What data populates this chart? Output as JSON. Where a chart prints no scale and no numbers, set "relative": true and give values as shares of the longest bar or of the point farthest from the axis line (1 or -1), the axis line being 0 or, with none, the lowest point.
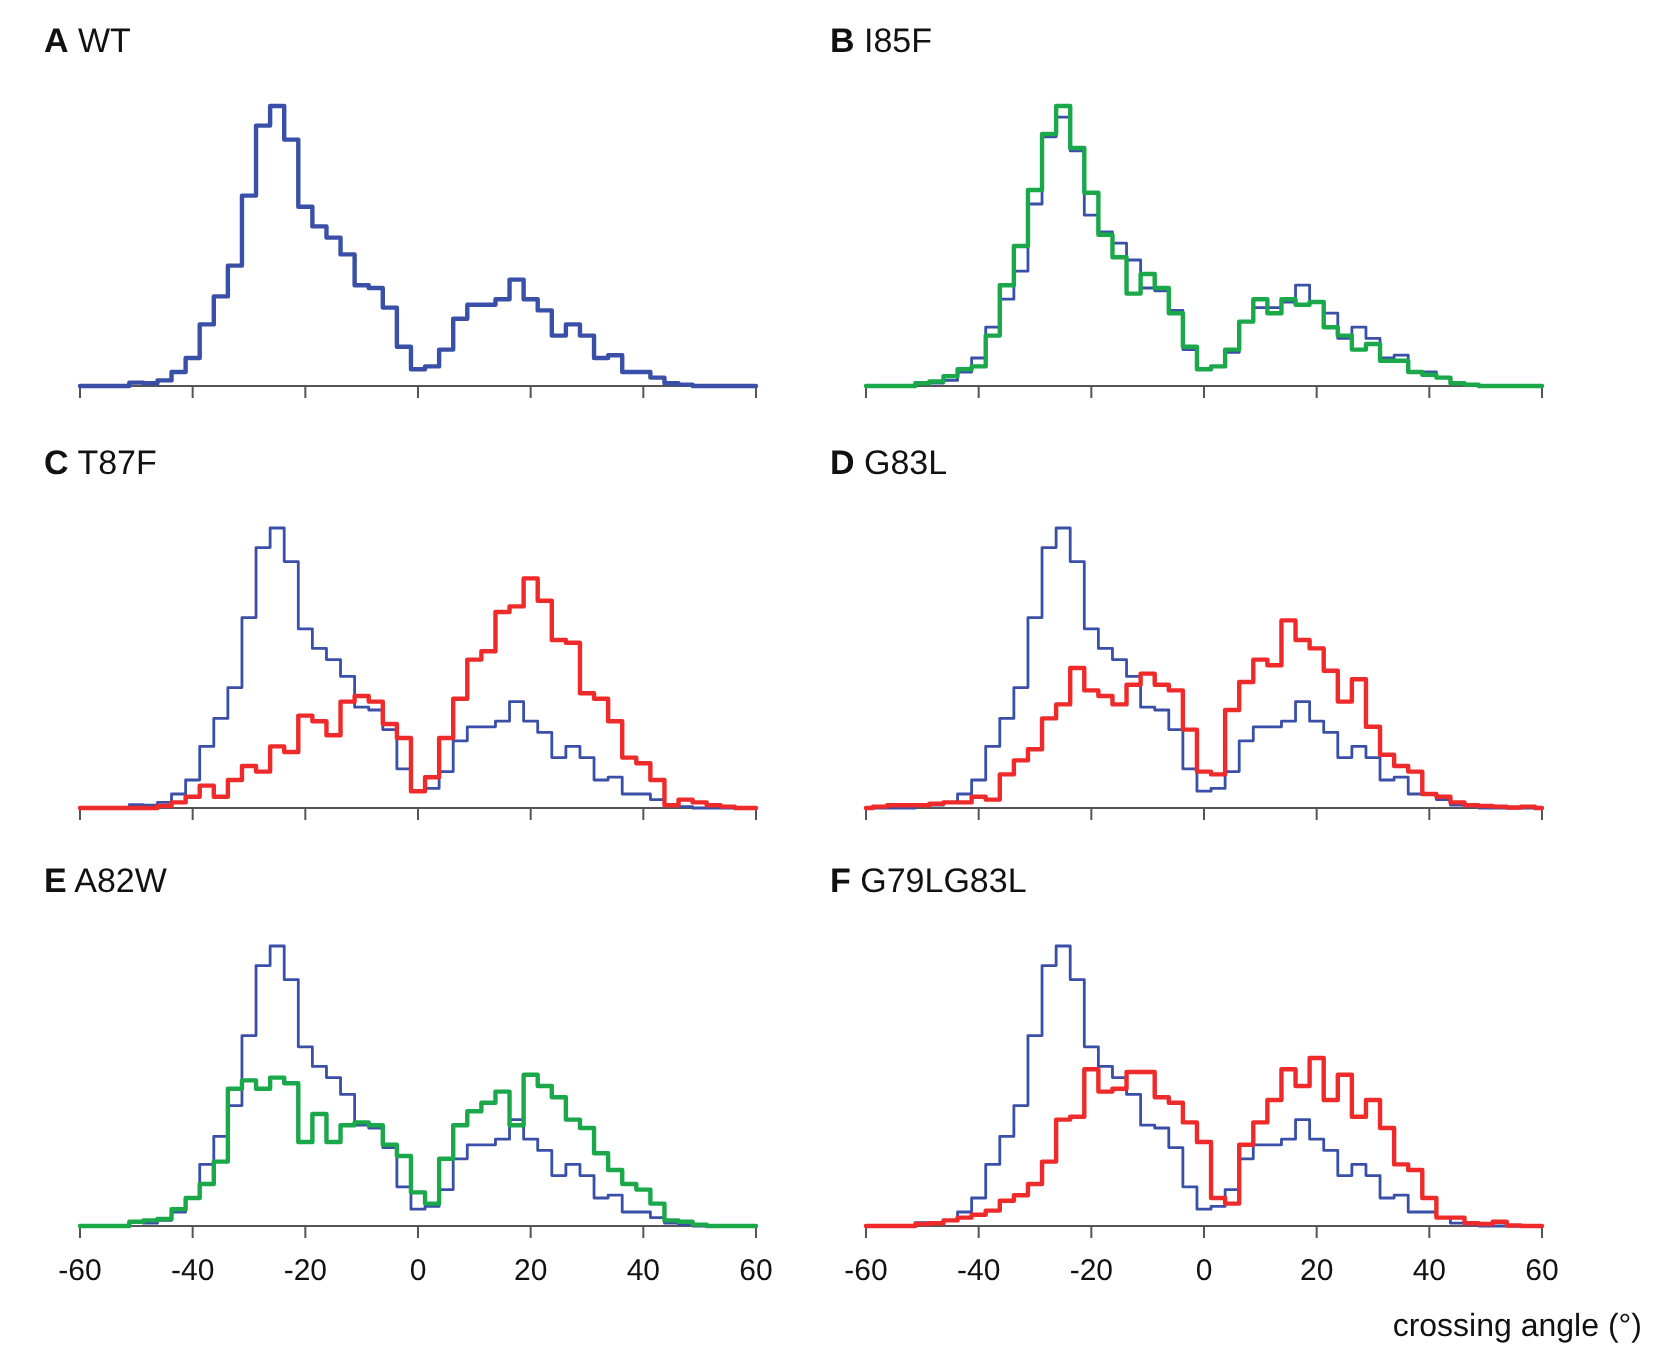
{
  "chart_data": [
    {
      "type": "step",
      "title": "A WT",
      "relative": true,
      "xlim": [
        -60,
        60
      ],
      "xticks": [
        -60,
        -40,
        -20,
        0,
        20,
        40,
        60
      ],
      "tick_labels": false,
      "x": [
        -60,
        -57.5,
        -55,
        -52.5,
        -50,
        -47.5,
        -45,
        -42.5,
        -40,
        -37.5,
        -35,
        -32.5,
        -30,
        -27.5,
        -25,
        -22.5,
        -20,
        -17.5,
        -15,
        -12.5,
        -10,
        -7.5,
        -5,
        -2.5,
        0,
        2.5,
        5,
        7.5,
        10,
        12.5,
        15,
        17.5,
        20,
        22.5,
        25,
        27.5,
        30,
        32.5,
        35,
        37.5,
        40,
        42.5,
        45,
        47.5,
        50,
        52.5,
        55,
        57.5,
        60
      ],
      "series": [
        {
          "color": "#3a4fa8",
          "values": [
            0,
            0,
            0,
            0,
            0.012,
            0.01,
            0.02,
            0.05,
            0.1,
            0.22,
            0.32,
            0.43,
            0.68,
            0.93,
            1,
            0.88,
            0.64,
            0.57,
            0.53,
            0.47,
            0.36,
            0.35,
            0.28,
            0.14,
            0.06,
            0.07,
            0.13,
            0.24,
            0.29,
            0.29,
            0.31,
            0.38,
            0.31,
            0.27,
            0.18,
            0.22,
            0.18,
            0.1,
            0.11,
            0.05,
            0.05,
            0.03,
            0.01,
            0.005,
            0,
            0,
            0,
            0,
            0
          ]
        }
      ]
    },
    {
      "type": "step",
      "title": "B I85F",
      "relative": true,
      "xlim": [
        -60,
        60
      ],
      "xticks": [
        -60,
        -40,
        -20,
        0,
        20,
        40,
        60
      ],
      "tick_labels": false,
      "x": [
        -60,
        -57.5,
        -55,
        -52.5,
        -50,
        -47.5,
        -45,
        -42.5,
        -40,
        -37.5,
        -35,
        -32.5,
        -30,
        -27.5,
        -25,
        -22.5,
        -20,
        -17.5,
        -15,
        -12.5,
        -10,
        -7.5,
        -5,
        -2.5,
        0,
        2.5,
        5,
        7.5,
        10,
        12.5,
        15,
        17.5,
        20,
        22.5,
        25,
        27.5,
        30,
        32.5,
        35,
        37.5,
        40,
        42.5,
        45,
        47.5,
        50,
        52.5,
        55,
        57.5,
        60
      ],
      "series": [
        {
          "color": "#3a4fa8",
          "values": [
            null,
            null,
            null,
            0,
            0.012,
            0.01,
            0.02,
            0.05,
            0.1,
            0.21,
            0.31,
            0.41,
            0.65,
            0.89,
            0.96,
            0.84,
            0.61,
            0.55,
            0.51,
            0.45,
            0.35,
            0.34,
            0.27,
            0.13,
            0.06,
            0.07,
            0.12,
            0.23,
            0.28,
            0.28,
            0.3,
            0.36,
            0.3,
            0.26,
            0.17,
            0.21,
            0.17,
            0.1,
            0.11,
            0.05,
            0.05,
            0.03,
            0.01,
            null,
            null,
            null,
            null,
            null,
            null
          ]
        },
        {
          "color": "#1aa84a",
          "values": [
            0,
            0,
            0,
            0,
            0.01,
            0.016,
            0.035,
            0.06,
            0.07,
            0.18,
            0.36,
            0.5,
            0.7,
            0.9,
            1,
            0.85,
            0.69,
            0.54,
            0.46,
            0.33,
            0.4,
            0.35,
            0.26,
            0.14,
            0.06,
            0.07,
            0.13,
            0.23,
            0.31,
            0.26,
            0.31,
            0.29,
            0.3,
            0.21,
            0.18,
            0.13,
            0.15,
            0.09,
            0.09,
            0.05,
            0.04,
            0.03,
            0.01,
            0.005,
            0,
            0,
            0,
            0,
            0
          ]
        }
      ]
    },
    {
      "type": "step",
      "title": "C T87F",
      "relative": true,
      "xlim": [
        -60,
        60
      ],
      "xticks": [
        -60,
        -40,
        -20,
        0,
        20,
        40,
        60
      ],
      "tick_labels": false,
      "x": [
        -60,
        -57.5,
        -55,
        -52.5,
        -50,
        -47.5,
        -45,
        -42.5,
        -40,
        -37.5,
        -35,
        -32.5,
        -30,
        -27.5,
        -25,
        -22.5,
        -20,
        -17.5,
        -15,
        -12.5,
        -10,
        -7.5,
        -5,
        -2.5,
        0,
        2.5,
        5,
        7.5,
        10,
        12.5,
        15,
        17.5,
        20,
        22.5,
        25,
        27.5,
        30,
        32.5,
        35,
        37.5,
        40,
        42.5,
        45,
        47.5,
        50,
        52.5,
        55,
        57.5,
        60
      ],
      "series": [
        {
          "color": "#3a4fa8",
          "values": [
            null,
            null,
            0,
            0,
            0.012,
            0.01,
            0.02,
            0.05,
            0.1,
            0.22,
            0.32,
            0.43,
            0.68,
            0.93,
            1,
            0.88,
            0.64,
            0.57,
            0.53,
            0.47,
            0.36,
            0.35,
            0.28,
            0.14,
            0.06,
            0.07,
            0.13,
            0.24,
            0.29,
            0.29,
            0.31,
            0.38,
            0.31,
            0.27,
            0.18,
            0.22,
            0.18,
            0.1,
            0.11,
            0.05,
            0.05,
            0.03,
            0.01,
            0.005,
            0,
            0,
            0,
            0,
            0
          ]
        },
        {
          "color": "#ee2a2a",
          "values": [
            0,
            0,
            0,
            0,
            0,
            0,
            0.007,
            0.02,
            0.04,
            0.08,
            0.04,
            0.1,
            0.15,
            0.13,
            0.22,
            0.2,
            0.33,
            0.31,
            0.26,
            0.38,
            0.4,
            0.38,
            0.3,
            0.25,
            0.06,
            0.11,
            0.25,
            0.39,
            0.53,
            0.56,
            0.7,
            0.72,
            0.82,
            0.74,
            0.6,
            0.59,
            0.41,
            0.39,
            0.31,
            0.18,
            0.16,
            0.1,
            0.01,
            0.03,
            0.02,
            0.01,
            0.005,
            0,
            0
          ]
        }
      ]
    },
    {
      "type": "step",
      "title": "D G83L",
      "relative": true,
      "xlim": [
        -60,
        60
      ],
      "xticks": [
        -60,
        -40,
        -20,
        0,
        20,
        40,
        60
      ],
      "tick_labels": false,
      "x": [
        -60,
        -57.5,
        -55,
        -52.5,
        -50,
        -47.5,
        -45,
        -42.5,
        -40,
        -37.5,
        -35,
        -32.5,
        -30,
        -27.5,
        -25,
        -22.5,
        -20,
        -17.5,
        -15,
        -12.5,
        -10,
        -7.5,
        -5,
        -2.5,
        0,
        2.5,
        5,
        7.5,
        10,
        12.5,
        15,
        17.5,
        20,
        22.5,
        25,
        27.5,
        30,
        32.5,
        35,
        37.5,
        40,
        42.5,
        45,
        47.5,
        50,
        52.5,
        55,
        57.5,
        60
      ],
      "series": [
        {
          "color": "#3a4fa8",
          "values": [
            0,
            0,
            0,
            0,
            0.012,
            0.01,
            0.02,
            0.05,
            0.1,
            0.22,
            0.32,
            0.43,
            0.68,
            0.93,
            1,
            0.88,
            0.64,
            0.57,
            0.53,
            0.47,
            0.36,
            0.35,
            0.28,
            0.14,
            0.06,
            0.07,
            0.13,
            0.24,
            0.29,
            0.29,
            0.31,
            0.38,
            0.31,
            0.27,
            0.18,
            0.22,
            0.18,
            0.1,
            0.11,
            0.05,
            0.05,
            0.03,
            0.01,
            0.005,
            0,
            0,
            0,
            0,
            0
          ]
        },
        {
          "color": "#ee2a2a",
          "values": [
            0,
            0.005,
            0.01,
            0.01,
            0.01,
            0.015,
            0.02,
            0.02,
            0.04,
            0.03,
            0.12,
            0.17,
            0.21,
            0.32,
            0.37,
            0.5,
            0.42,
            0.4,
            0.37,
            0.44,
            0.48,
            0.44,
            0.42,
            0.28,
            0.13,
            0.12,
            0.35,
            0.45,
            0.53,
            0.51,
            0.67,
            0.6,
            0.57,
            0.49,
            0.38,
            0.46,
            0.29,
            0.19,
            0.15,
            0.13,
            0.05,
            0.04,
            0.02,
            0.01,
            0.007,
            0.005,
            0.002,
            0.005,
            0
          ]
        }
      ]
    },
    {
      "type": "step",
      "title": "E A82W",
      "relative": true,
      "xlim": [
        -60,
        60
      ],
      "xticks": [
        -60,
        -40,
        -20,
        0,
        20,
        40,
        60
      ],
      "tick_labels": "x",
      "x": [
        -60,
        -57.5,
        -55,
        -52.5,
        -50,
        -47.5,
        -45,
        -42.5,
        -40,
        -37.5,
        -35,
        -32.5,
        -30,
        -27.5,
        -25,
        -22.5,
        -20,
        -17.5,
        -15,
        -12.5,
        -10,
        -7.5,
        -5,
        -2.5,
        0,
        2.5,
        5,
        7.5,
        10,
        12.5,
        15,
        17.5,
        20,
        22.5,
        25,
        27.5,
        30,
        32.5,
        35,
        37.5,
        40,
        42.5,
        45,
        47.5,
        50,
        52.5,
        55,
        57.5,
        60
      ],
      "series": [
        {
          "color": "#3a4fa8",
          "values": [
            null,
            null,
            null,
            0,
            0.012,
            0.01,
            0.02,
            0.05,
            0.1,
            0.22,
            0.32,
            0.43,
            0.68,
            0.93,
            1,
            0.88,
            0.64,
            0.57,
            0.53,
            0.47,
            0.36,
            0.35,
            0.28,
            0.14,
            0.06,
            0.07,
            0.13,
            0.24,
            0.29,
            0.29,
            0.31,
            0.38,
            0.31,
            0.27,
            0.18,
            0.22,
            0.18,
            0.1,
            0.11,
            0.05,
            0.05,
            0.03,
            0.01,
            0.005,
            0,
            0,
            0,
            null,
            null
          ]
        },
        {
          "color": "#1aa84a",
          "values": [
            0,
            0,
            0,
            0,
            0.015,
            0.02,
            0.025,
            0.06,
            0.1,
            0.15,
            0.23,
            0.49,
            0.52,
            0.49,
            0.53,
            0.51,
            0.3,
            0.4,
            0.3,
            0.36,
            0.37,
            0.36,
            0.29,
            0.25,
            0.12,
            0.08,
            0.24,
            0.36,
            0.41,
            0.44,
            0.48,
            0.36,
            0.54,
            0.5,
            0.46,
            0.38,
            0.35,
            0.26,
            0.2,
            0.15,
            0.13,
            0.08,
            0.02,
            0.015,
            0.005,
            0,
            0,
            0,
            0
          ]
        }
      ]
    },
    {
      "type": "step",
      "title": "F G79LG83L",
      "xlabel": "crossing angle (°)",
      "relative": true,
      "xlim": [
        -60,
        60
      ],
      "xticks": [
        -60,
        -40,
        -20,
        0,
        20,
        40,
        60
      ],
      "tick_labels": "x",
      "x": [
        -60,
        -57.5,
        -55,
        -52.5,
        -50,
        -47.5,
        -45,
        -42.5,
        -40,
        -37.5,
        -35,
        -32.5,
        -30,
        -27.5,
        -25,
        -22.5,
        -20,
        -17.5,
        -15,
        -12.5,
        -10,
        -7.5,
        -5,
        -2.5,
        0,
        2.5,
        5,
        7.5,
        10,
        12.5,
        15,
        17.5,
        20,
        22.5,
        25,
        27.5,
        30,
        32.5,
        35,
        37.5,
        40,
        42.5,
        45,
        47.5,
        50,
        52.5,
        55,
        57.5,
        60
      ],
      "series": [
        {
          "color": "#3a4fa8",
          "values": [
            null,
            null,
            0,
            0,
            0.012,
            0.01,
            0.02,
            0.05,
            0.1,
            0.22,
            0.32,
            0.43,
            0.68,
            0.93,
            1,
            0.88,
            0.64,
            0.57,
            0.53,
            0.47,
            0.36,
            0.35,
            0.28,
            0.14,
            0.06,
            0.07,
            0.13,
            0.24,
            0.29,
            0.29,
            0.31,
            0.38,
            0.31,
            0.27,
            0.18,
            0.22,
            0.18,
            0.1,
            0.11,
            0.05,
            0.05,
            0.03,
            0.01,
            0.005,
            0,
            0,
            0,
            0,
            0
          ]
        },
        {
          "color": "#ee2a2a",
          "values": [
            0,
            0,
            0,
            0,
            0.007,
            0.01,
            0.02,
            0.03,
            0.04,
            0.055,
            0.09,
            0.11,
            0.15,
            0.23,
            0.38,
            0.39,
            0.56,
            0.48,
            0.49,
            0.55,
            0.55,
            0.46,
            0.44,
            0.37,
            0.3,
            0.1,
            0.08,
            0.29,
            0.37,
            0.45,
            0.56,
            0.5,
            0.6,
            0.45,
            0.54,
            0.39,
            0.45,
            0.35,
            0.22,
            0.2,
            0.1,
            0.03,
            0.03,
            0.01,
            0.007,
            0.015,
            0.002,
            0,
            0
          ]
        }
      ]
    }
  ]
}
